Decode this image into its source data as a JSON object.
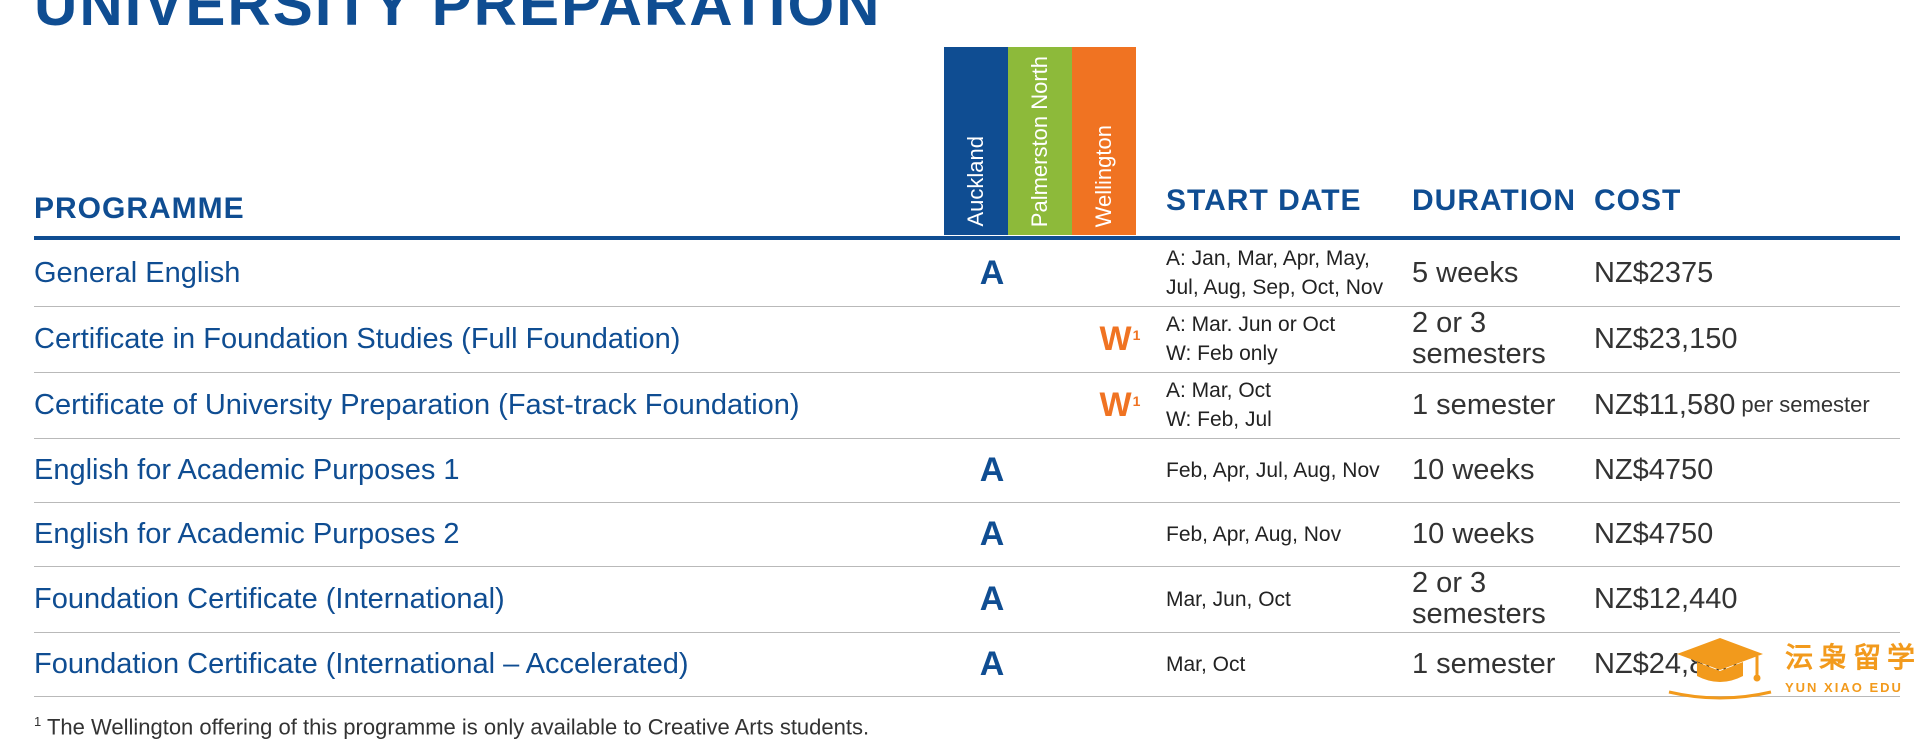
{
  "header": {
    "title": "UNIVERSITY PREPARATION",
    "columns": {
      "programme": "PROGRAMME",
      "start_date": "START DATE",
      "duration": "DURATION",
      "cost": "COST"
    },
    "campuses": [
      {
        "name": "Auckland",
        "color": "#0f4d92"
      },
      {
        "name": "Palmerston North",
        "color": "#8dba3a"
      },
      {
        "name": "Wellington",
        "color": "#f07322"
      }
    ]
  },
  "rows": [
    {
      "programme": "General English",
      "campus": "A",
      "start_lines": [
        "A: Jan, Mar, Apr, May,",
        "Jul, Aug, Sep, Oct, Nov"
      ],
      "duration_lines": [
        "5 weeks"
      ],
      "cost": "NZ$2375",
      "cost_note": ""
    },
    {
      "programme": "Certificate in Foundation Studies (Full Foundation)",
      "campus": "W",
      "campus_sup": "1",
      "start_lines": [
        "A: Mar. Jun or Oct",
        "W: Feb only"
      ],
      "duration_lines": [
        "2 or 3",
        "semesters"
      ],
      "cost": "NZ$23,150",
      "cost_note": ""
    },
    {
      "programme": "Certificate of University Preparation (Fast-track Foundation)",
      "campus": "W",
      "campus_sup": "1",
      "start_lines": [
        "A: Mar, Oct",
        "W: Feb, Jul"
      ],
      "duration_lines": [
        "1 semester"
      ],
      "cost": "NZ$11,580",
      "cost_note": "per semester"
    },
    {
      "programme": "English for Academic Purposes 1",
      "campus": "A",
      "start_lines": [
        "Feb, Apr, Jul, Aug, Nov"
      ],
      "duration_lines": [
        "10 weeks"
      ],
      "cost": "NZ$4750",
      "cost_note": ""
    },
    {
      "programme": "English for Academic Purposes 2",
      "campus": "A",
      "start_lines": [
        "Feb, Apr, Aug, Nov"
      ],
      "duration_lines": [
        "10 weeks"
      ],
      "cost": "NZ$4750",
      "cost_note": ""
    },
    {
      "programme": "Foundation Certificate (International)",
      "campus": "A",
      "start_lines": [
        "Mar, Jun, Oct"
      ],
      "duration_lines": [
        "2 or 3",
        "semesters"
      ],
      "cost": "NZ$12,440",
      "cost_note": ""
    },
    {
      "programme": "Foundation Certificate (International – Accelerated)",
      "campus": "A",
      "start_lines": [
        "Mar, Oct"
      ],
      "duration_lines": [
        "1 semester"
      ],
      "cost": "NZ$24,800",
      "cost_note": ""
    }
  ],
  "footnote": {
    "marker": "1",
    "text": " The Wellington offering of this programme is only available to Creative Arts students."
  },
  "watermark": {
    "cn": "沄枭留学",
    "en": "YUN XIAO EDU",
    "color": "#f29a1c"
  }
}
